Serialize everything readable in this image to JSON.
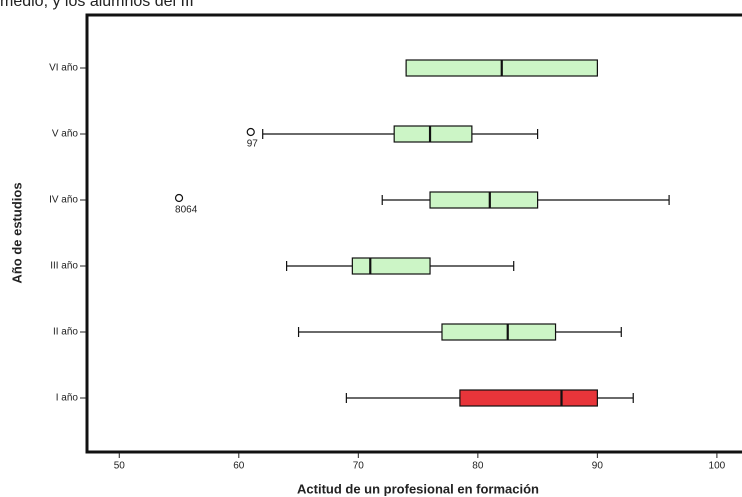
{
  "chart_data": {
    "type": "boxplot",
    "caption": "medio, y los alumnos del III",
    "x_label": "Actitud de un profesional en formación",
    "y_label": "Año de estudios",
    "xlim": [
      47.3,
      102.1
    ],
    "xticks": [
      50,
      60,
      70,
      80,
      90,
      100
    ],
    "categories": [
      "VI año",
      "V año",
      "IV año",
      "III año",
      "II año",
      "I año"
    ],
    "boxes": [
      {
        "whisker_low": 74,
        "q1": 74,
        "median": 82,
        "q3": 90,
        "whisker_high": 90,
        "color": "#ccf5c6",
        "outliers": []
      },
      {
        "whisker_low": 62,
        "q1": 73,
        "median": 76,
        "q3": 79.5,
        "whisker_high": 85,
        "color": "#ccf5c6",
        "outliers": [
          {
            "value": 61,
            "label": "97"
          }
        ]
      },
      {
        "whisker_low": 72,
        "q1": 76,
        "median": 81,
        "q3": 85,
        "whisker_high": 96,
        "color": "#ccf5c6",
        "outliers": [
          {
            "value": 55,
            "label": "8064"
          }
        ]
      },
      {
        "whisker_low": 64,
        "q1": 69.5,
        "median": 71,
        "q3": 76,
        "whisker_high": 83,
        "color": "#ccf5c6",
        "outliers": []
      },
      {
        "whisker_low": 65,
        "q1": 77,
        "median": 82.5,
        "q3": 86.5,
        "whisker_high": 92,
        "color": "#ccf5c6",
        "outliers": []
      },
      {
        "whisker_low": 69,
        "q1": 78.5,
        "median": 87,
        "q3": 90,
        "whisker_high": 93,
        "color": "#e8353a",
        "outliers": []
      }
    ]
  }
}
